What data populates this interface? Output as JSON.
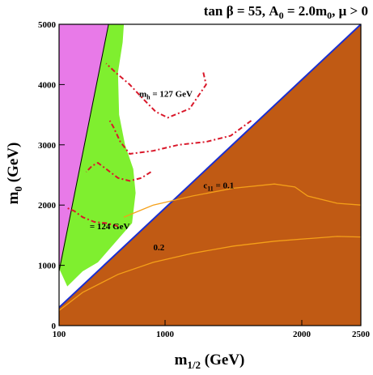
{
  "chart_data": {
    "type": "area",
    "title": "tan β = 55, A",
    "title_a0_sub": "0",
    "title_eq": " = 2.0m",
    "title_m0_sub": "0",
    "title_tail": ",  μ > 0",
    "xlabel": "m",
    "xlabel_sub": "1/2",
    "xlabel_unit": " (GeV)",
    "ylabel": "m",
    "ylabel_sub": "0",
    "ylabel_unit": " (GeV)",
    "xlim": [
      100,
      2500
    ],
    "ylim": [
      0,
      5000
    ],
    "x_ticks": [
      100,
      1000,
      2000,
      2500
    ],
    "x_tick_labels": [
      "100",
      "1000",
      "2000",
      "2500"
    ],
    "y_ticks": [
      0,
      1000,
      2000,
      3000,
      4000,
      5000
    ],
    "y_tick_labels": [
      "0",
      "1000",
      "2000",
      "3000",
      "4000",
      "5000"
    ],
    "grid": false,
    "regions": [
      {
        "name": "charged-LSP-excluded",
        "color": "#c05a14",
        "points": [
          [
            100,
            300
          ],
          [
            2500,
            5000
          ],
          [
            2500,
            0
          ],
          [
            100,
            0
          ]
        ]
      },
      {
        "name": "no-EWSB-excluded",
        "color": "#e87ae8",
        "points": [
          [
            100,
            900
          ],
          [
            100,
            5000
          ],
          [
            520,
            5000
          ]
        ]
      },
      {
        "name": "dark-matter-allowed",
        "color": "#7fef2f",
        "points": [
          [
            100,
            950
          ],
          [
            520,
            5000
          ],
          [
            650,
            5000
          ],
          [
            640,
            4700
          ],
          [
            600,
            4200
          ],
          [
            610,
            3500
          ],
          [
            660,
            3000
          ],
          [
            730,
            2600
          ],
          [
            750,
            2200
          ],
          [
            720,
            1700
          ],
          [
            430,
            1050
          ],
          [
            300,
            900
          ],
          [
            170,
            650
          ]
        ]
      }
    ],
    "series": [
      {
        "label": "m_h = 127 GeV",
        "style": "dash-dot",
        "color": "#d9182a",
        "points": [
          [
            1280,
            4200
          ],
          [
            1300,
            4000
          ],
          [
            1180,
            3600
          ],
          [
            1020,
            3450
          ],
          [
            920,
            3550
          ],
          [
            820,
            3750
          ],
          [
            700,
            4000
          ],
          [
            580,
            4200
          ],
          [
            500,
            4350
          ]
        ]
      },
      {
        "label": "m_h = 127 GeV",
        "style": "dash-dot",
        "color": "#d9182a",
        "points": [
          [
            1630,
            3400
          ],
          [
            1480,
            3150
          ],
          [
            1300,
            3050
          ],
          [
            1100,
            3000
          ],
          [
            900,
            2900
          ],
          [
            700,
            2850
          ],
          [
            620,
            3050
          ],
          [
            560,
            3300
          ],
          [
            530,
            3400
          ]
        ]
      },
      {
        "label": "m_h = 124 GeV",
        "style": "dash-dot",
        "color": "#d9182a",
        "points": [
          [
            880,
            2550
          ],
          [
            800,
            2450
          ],
          [
            700,
            2400
          ],
          [
            600,
            2450
          ],
          [
            500,
            2600
          ],
          [
            430,
            2700
          ],
          [
            380,
            2650
          ],
          [
            330,
            2550
          ]
        ]
      },
      {
        "label": "m_h = 124 GeV",
        "style": "dash-dot",
        "color": "#d9182a",
        "points": [
          [
            600,
            1650
          ],
          [
            500,
            1700
          ],
          [
            400,
            1720
          ],
          [
            300,
            1800
          ],
          [
            230,
            1900
          ],
          [
            170,
            1950
          ]
        ]
      },
      {
        "label": "c_11 = 0.1",
        "style": "solid",
        "color": "#f5a018",
        "points": [
          [
            650,
            1800
          ],
          [
            900,
            2000
          ],
          [
            1200,
            2150
          ],
          [
            1500,
            2280
          ],
          [
            1800,
            2350
          ],
          [
            1950,
            2300
          ],
          [
            2050,
            2150
          ],
          [
            2300,
            2030
          ],
          [
            2500,
            2000
          ]
        ]
      },
      {
        "label": "c_11 = 0.2",
        "style": "solid",
        "color": "#f5a018",
        "points": [
          [
            100,
            250
          ],
          [
            300,
            550
          ],
          [
            600,
            850
          ],
          [
            900,
            1050
          ],
          [
            1200,
            1200
          ],
          [
            1500,
            1320
          ],
          [
            1800,
            1400
          ],
          [
            2100,
            1450
          ],
          [
            2300,
            1480
          ],
          [
            2500,
            1470
          ]
        ]
      }
    ],
    "annotations": [
      {
        "text": "m",
        "sub": "h",
        "tail": " = 127 GeV",
        "x": 780,
        "y": 3800
      },
      {
        "text": "= 124 GeV",
        "x": 360,
        "y": 1600
      },
      {
        "text": "c",
        "sub": "11",
        "tail": " =  0.1",
        "x": 1280,
        "y": 2280
      },
      {
        "text": "0.2",
        "x": 900,
        "y": 1250
      }
    ]
  }
}
